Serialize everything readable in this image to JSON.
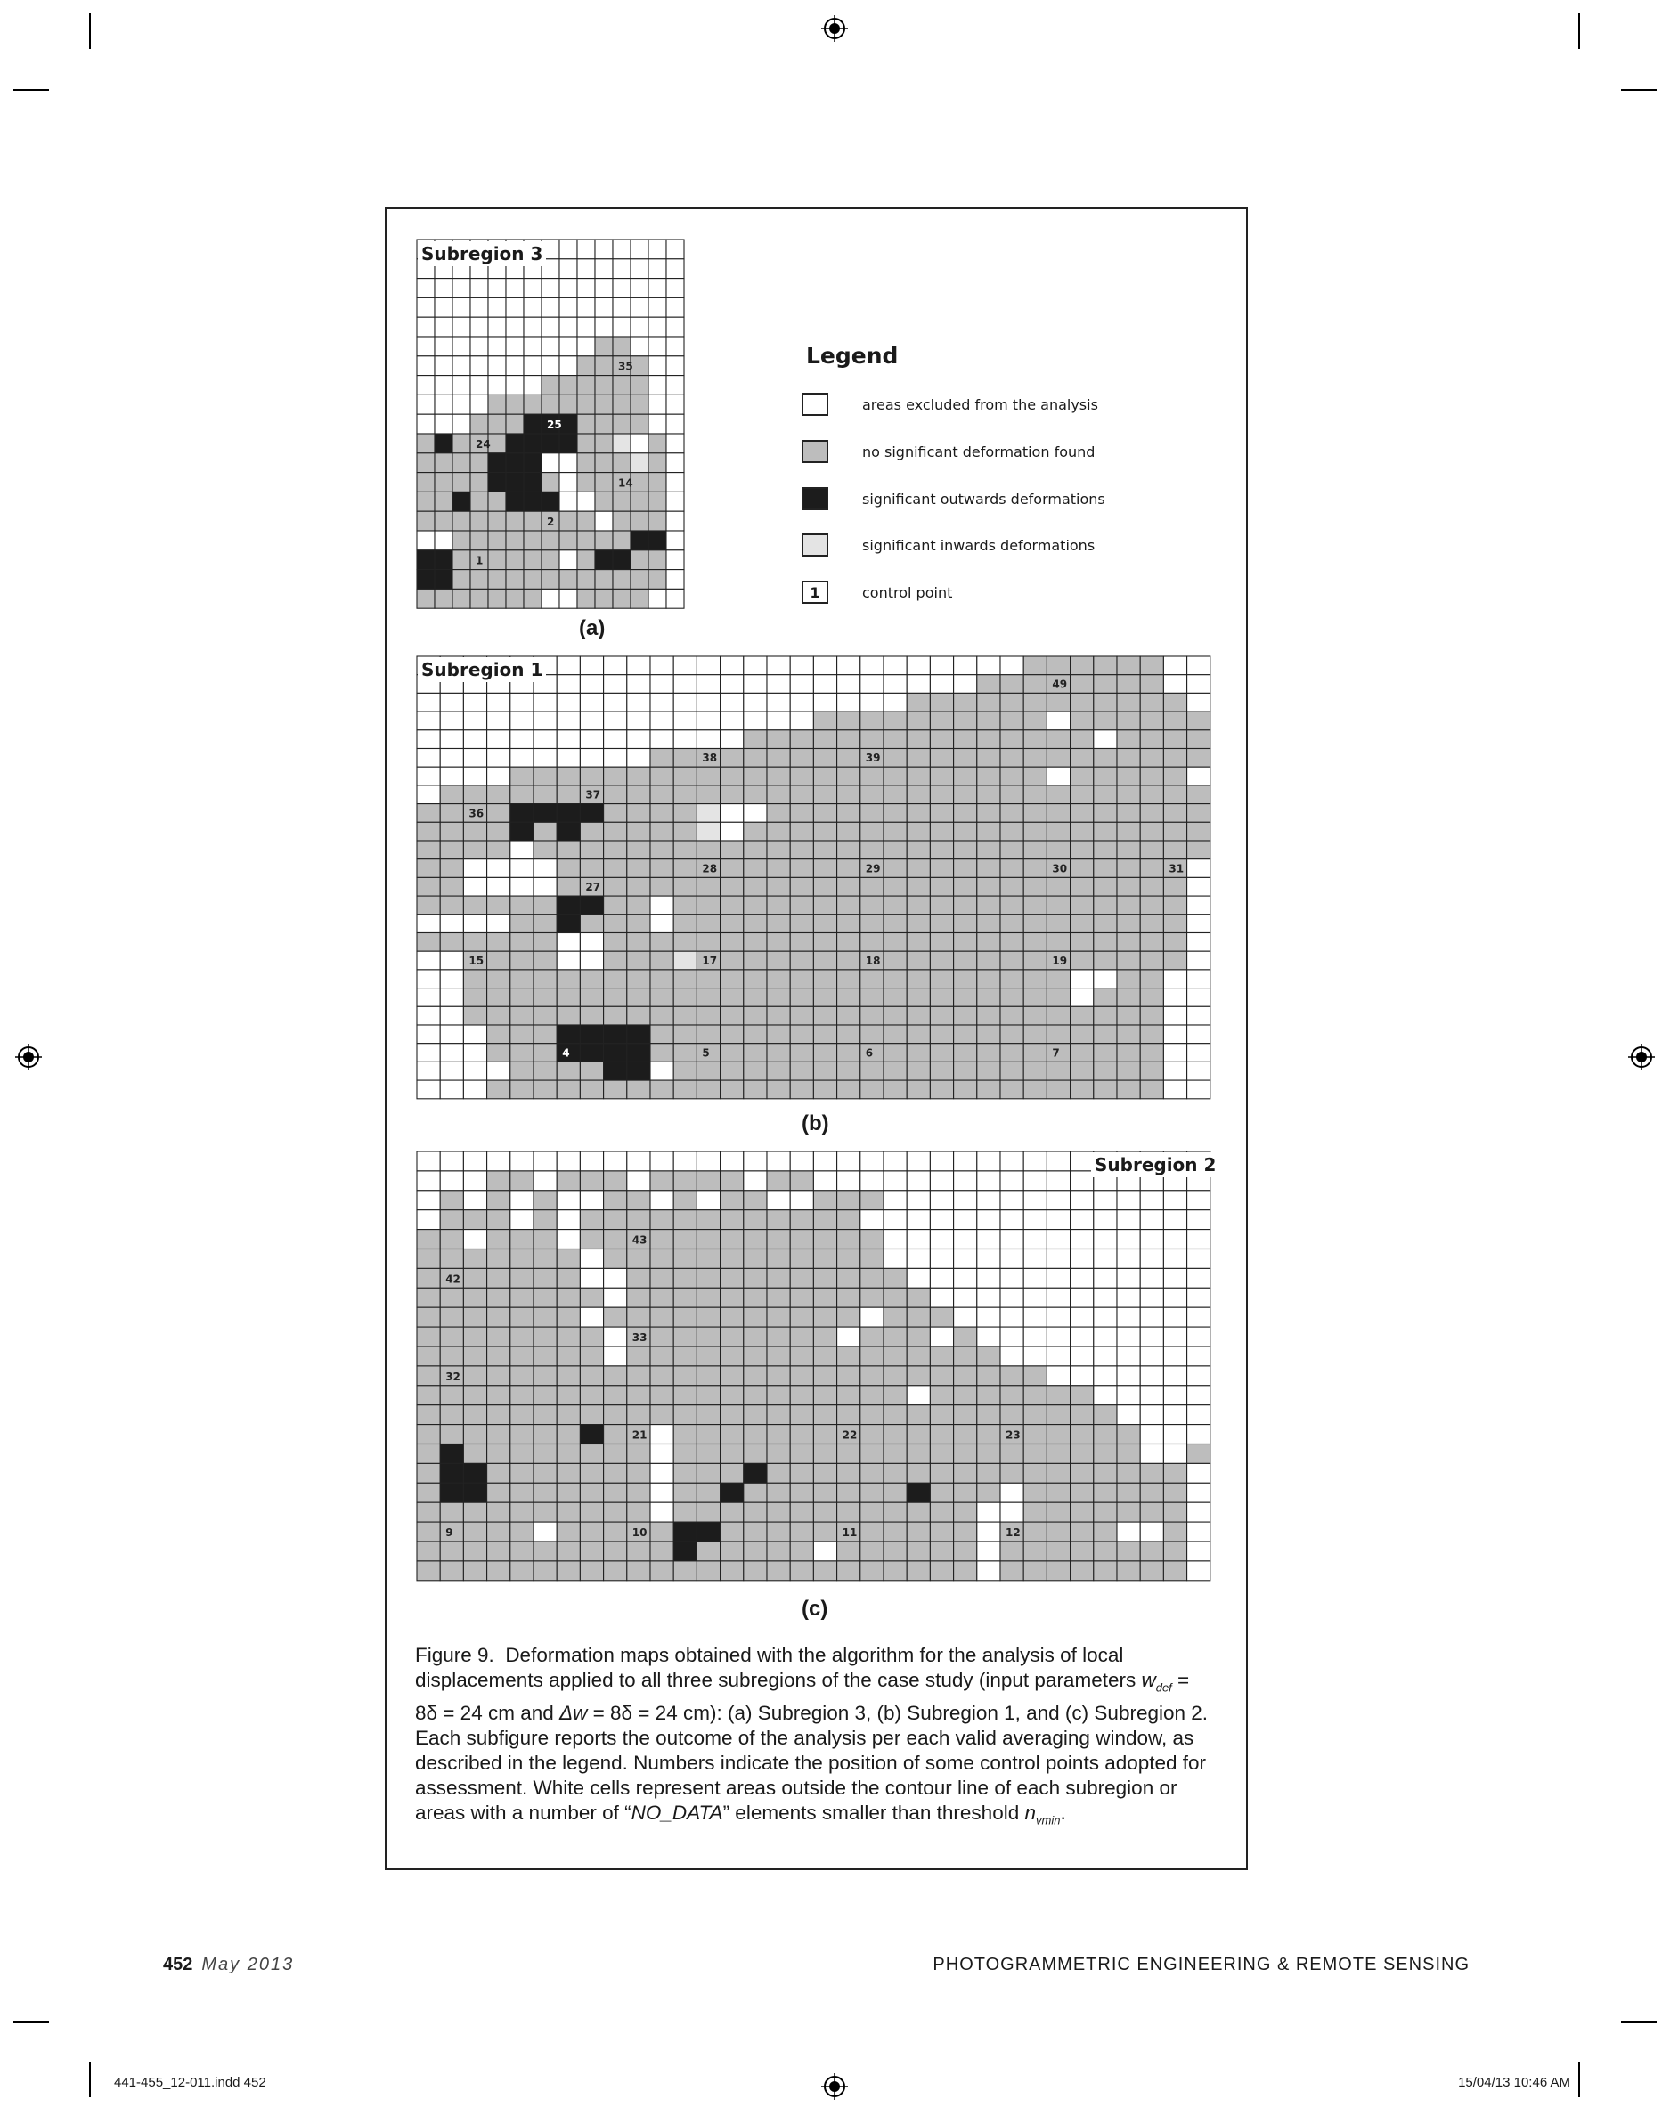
{
  "subfigures": {
    "a": {
      "panel_label": "(a)",
      "region_title": "Subregion 3",
      "control_points": [
        "35",
        "25",
        "24",
        "14",
        "2",
        "1"
      ]
    },
    "b": {
      "panel_label": "(b)",
      "region_title": "Subregion 1",
      "control_points": [
        "49",
        "38",
        "39",
        "37",
        "36",
        "28",
        "29",
        "30",
        "31",
        "27",
        "15",
        "17",
        "18",
        "19",
        "4",
        "5",
        "6",
        "7"
      ]
    },
    "c": {
      "panel_label": "(c)",
      "region_title": "Subregion 2",
      "control_points": [
        "43",
        "42",
        "33",
        "32",
        "21",
        "22",
        "23",
        "9",
        "10",
        "11",
        "12"
      ]
    }
  },
  "legend": {
    "title": "Legend",
    "items": [
      {
        "label": "areas excluded from the analysis",
        "fill": "#ffffff",
        "symbol": ""
      },
      {
        "label": "no significant deformation found",
        "fill": "#bdbdbd",
        "symbol": ""
      },
      {
        "label": "significant outwards deformations",
        "fill": "#1c1c1c",
        "symbol": ""
      },
      {
        "label": "significant inwards deformations",
        "fill": "#e4e4e4",
        "symbol": ""
      },
      {
        "label": "control point",
        "fill": "#ffffff",
        "symbol": "1"
      }
    ]
  },
  "colors": {
    "excluded": "#ffffff",
    "no_deformation": "#bdbdbd",
    "outwards": "#1c1c1c",
    "inwards": "#e4e4e4",
    "grid_line": "#222222"
  },
  "caption": {
    "label": "Figure 9.",
    "part1": "Deformation maps obtained with the algorithm for the analysis of local displacements applied to all three subregions of the case study (input parameters ",
    "w_sym": "w",
    "w_sub": "def",
    "part2": " = 8δ = 24 cm and ",
    "dw_sym": "Δw",
    "part3": " = 8δ = 24 cm): (a) Subregion 3, (b) Subregion 1, and (c) Subregion 2. Each subfigure reports the outcome of the analysis per each valid averaging window, as described in the legend. Numbers indicate the position of some control points adopted for assessment. White cells represent areas outside the contour line of each subregion or areas with a number of “",
    "nodata": "NO_DATA",
    "part4": "” elements smaller than threshold ",
    "n_sym": "n",
    "n_sub": "vmin",
    "part5": "."
  },
  "footer": {
    "page_number": "452",
    "date": "May 2013",
    "journal": "PHOTOGRAMMETRIC ENGINEERING & REMOTE SENSING",
    "file_slug": "441-455_12-011.indd   452",
    "timestamp": "15/04/13   10:46 AM"
  }
}
